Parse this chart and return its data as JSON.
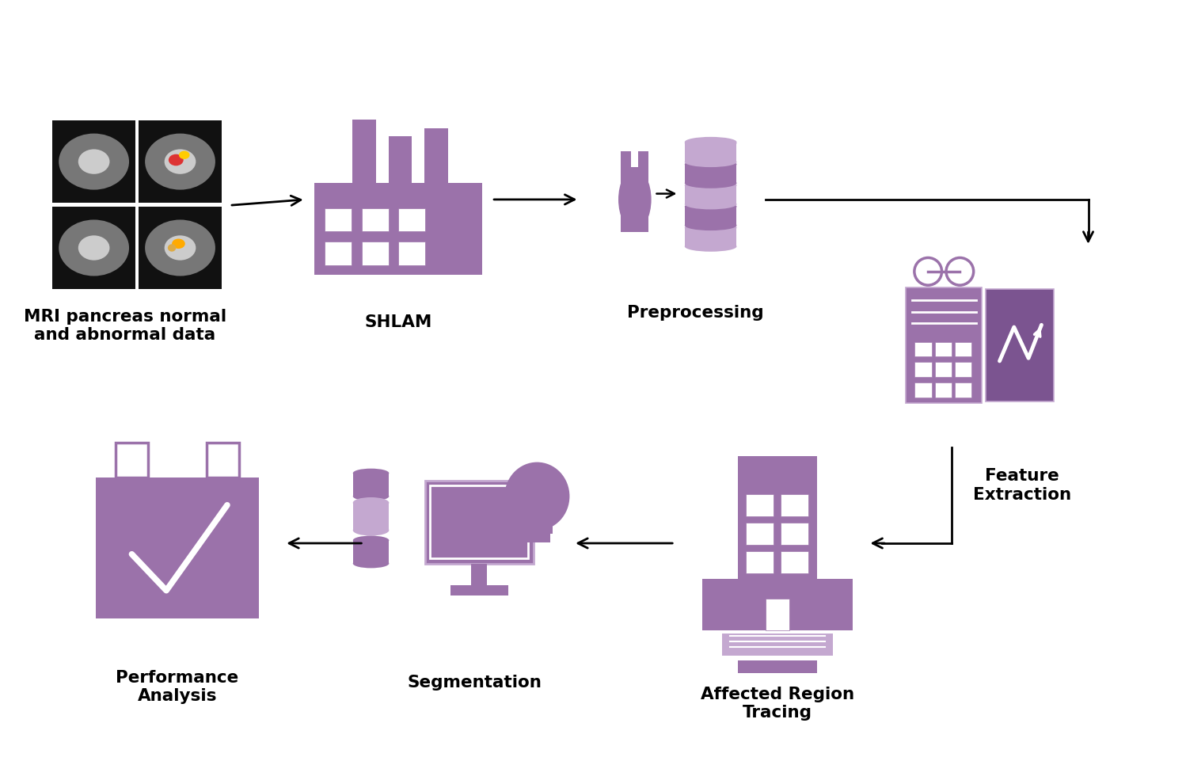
{
  "bg_color": "#ffffff",
  "purple": "#9b72aa",
  "purple_dark": "#7b5490",
  "purple_light": "#c4a8d0",
  "labels": {
    "mri": "MRI pancreas normal\nand abnormal data",
    "shlam": "SHLAM",
    "preprocessing": "Preprocessing",
    "feature": "Feature\nExtraction",
    "affected": "Affected Region\nTracing",
    "segmentation": "Segmentation",
    "performance": "Performance\nAnalysis"
  }
}
